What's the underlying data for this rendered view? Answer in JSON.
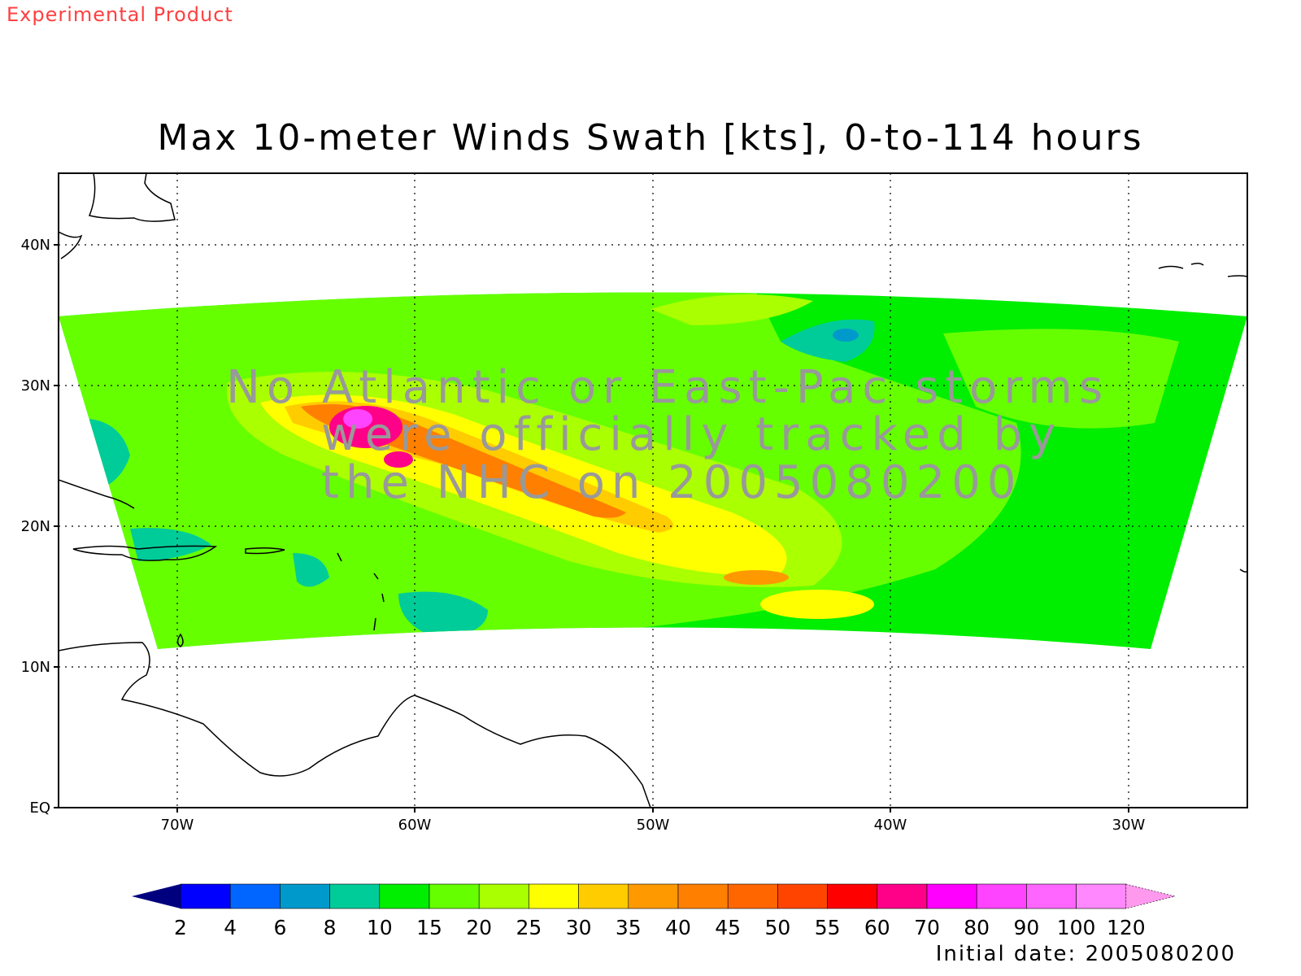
{
  "header": {
    "experimental_label": "Experimental Product",
    "experimental_color": "#ff4040",
    "title": "Max 10-meter Winds Swath [kts], 0-to-114 hours"
  },
  "footer": {
    "initial_date": "Initial date: 2005080200"
  },
  "notice": {
    "lines": [
      "No Atlantic or East-Pac storms",
      "were officially tracked by",
      "the NHC on 2005080200"
    ]
  },
  "map": {
    "lon_ticks": [
      "70W",
      "60W",
      "50W",
      "40W",
      "30W"
    ],
    "lat_ticks": [
      "EQ",
      "10N",
      "20N",
      "30N",
      "40N"
    ],
    "lon_values": [
      -70,
      -60,
      -50,
      -40,
      -30
    ],
    "lat_values": [
      0,
      10,
      20,
      30,
      40
    ],
    "extent": {
      "lon_min": -75,
      "lon_max": -25,
      "lat_min": 0,
      "lat_max": 45
    },
    "grid_style": "dotted",
    "land_color": "#ffffff",
    "coastline_color": "#000000"
  },
  "colorbar": {
    "labels": [
      "2",
      "4",
      "6",
      "8",
      "10",
      "15",
      "20",
      "25",
      "30",
      "35",
      "40",
      "45",
      "50",
      "55",
      "60",
      "70",
      "80",
      "90",
      "100",
      "120"
    ],
    "colors": [
      "#00007f",
      "#0000ff",
      "#0066ff",
      "#0099cc",
      "#00cc99",
      "#00ee00",
      "#66ff00",
      "#aaff00",
      "#ffff00",
      "#ffcc00",
      "#ff9900",
      "#ff7f00",
      "#ff6600",
      "#ff4400",
      "#ff0000",
      "#ff0088",
      "#ff00ff",
      "#ff44ff",
      "#ff66ff",
      "#ff88ff",
      "#ff99ee"
    ],
    "left_extend": "triangle",
    "right_extend": "triangle"
  },
  "field": {
    "description_colors": {
      "background": "#00ee00",
      "low": "#00cc99",
      "moderate": "#66ff00",
      "elevated": "#aaff00",
      "high": "#ffff00",
      "strong": "#ffcc00",
      "very_strong": "#ff7f00",
      "extreme": "#ff0088",
      "peak": "#ff44ff"
    }
  }
}
